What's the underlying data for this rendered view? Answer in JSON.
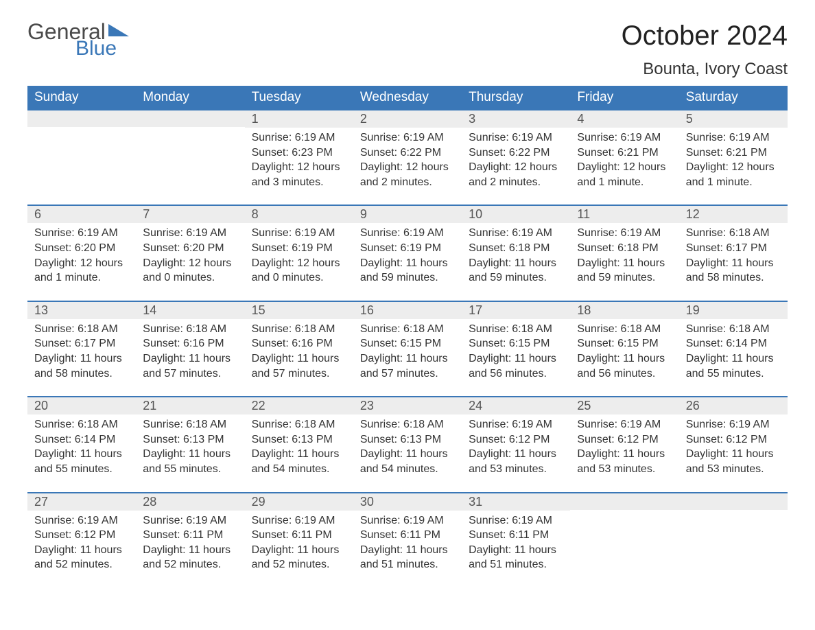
{
  "brand": {
    "part1": "General",
    "part2": "Blue",
    "brand_color": "#3a77b7",
    "text_color": "#4a4a4a"
  },
  "title": "October 2024",
  "location": "Bounta, Ivory Coast",
  "colors": {
    "header_bg": "#3a77b7",
    "header_text": "#ffffff",
    "daynum_bg": "#ededed",
    "body_text": "#333333",
    "row_border": "#3a77b7",
    "page_bg": "#ffffff"
  },
  "fonts": {
    "title_size_pt": 30,
    "header_size_pt": 14,
    "body_size_pt": 12
  },
  "weekdays": [
    "Sunday",
    "Monday",
    "Tuesday",
    "Wednesday",
    "Thursday",
    "Friday",
    "Saturday"
  ],
  "weeks": [
    [
      {
        "day": "",
        "sunrise": "",
        "sunset": "",
        "daylight": ""
      },
      {
        "day": "",
        "sunrise": "",
        "sunset": "",
        "daylight": ""
      },
      {
        "day": "1",
        "sunrise": "Sunrise: 6:19 AM",
        "sunset": "Sunset: 6:23 PM",
        "daylight": "Daylight: 12 hours and 3 minutes."
      },
      {
        "day": "2",
        "sunrise": "Sunrise: 6:19 AM",
        "sunset": "Sunset: 6:22 PM",
        "daylight": "Daylight: 12 hours and 2 minutes."
      },
      {
        "day": "3",
        "sunrise": "Sunrise: 6:19 AM",
        "sunset": "Sunset: 6:22 PM",
        "daylight": "Daylight: 12 hours and 2 minutes."
      },
      {
        "day": "4",
        "sunrise": "Sunrise: 6:19 AM",
        "sunset": "Sunset: 6:21 PM",
        "daylight": "Daylight: 12 hours and 1 minute."
      },
      {
        "day": "5",
        "sunrise": "Sunrise: 6:19 AM",
        "sunset": "Sunset: 6:21 PM",
        "daylight": "Daylight: 12 hours and 1 minute."
      }
    ],
    [
      {
        "day": "6",
        "sunrise": "Sunrise: 6:19 AM",
        "sunset": "Sunset: 6:20 PM",
        "daylight": "Daylight: 12 hours and 1 minute."
      },
      {
        "day": "7",
        "sunrise": "Sunrise: 6:19 AM",
        "sunset": "Sunset: 6:20 PM",
        "daylight": "Daylight: 12 hours and 0 minutes."
      },
      {
        "day": "8",
        "sunrise": "Sunrise: 6:19 AM",
        "sunset": "Sunset: 6:19 PM",
        "daylight": "Daylight: 12 hours and 0 minutes."
      },
      {
        "day": "9",
        "sunrise": "Sunrise: 6:19 AM",
        "sunset": "Sunset: 6:19 PM",
        "daylight": "Daylight: 11 hours and 59 minutes."
      },
      {
        "day": "10",
        "sunrise": "Sunrise: 6:19 AM",
        "sunset": "Sunset: 6:18 PM",
        "daylight": "Daylight: 11 hours and 59 minutes."
      },
      {
        "day": "11",
        "sunrise": "Sunrise: 6:19 AM",
        "sunset": "Sunset: 6:18 PM",
        "daylight": "Daylight: 11 hours and 59 minutes."
      },
      {
        "day": "12",
        "sunrise": "Sunrise: 6:18 AM",
        "sunset": "Sunset: 6:17 PM",
        "daylight": "Daylight: 11 hours and 58 minutes."
      }
    ],
    [
      {
        "day": "13",
        "sunrise": "Sunrise: 6:18 AM",
        "sunset": "Sunset: 6:17 PM",
        "daylight": "Daylight: 11 hours and 58 minutes."
      },
      {
        "day": "14",
        "sunrise": "Sunrise: 6:18 AM",
        "sunset": "Sunset: 6:16 PM",
        "daylight": "Daylight: 11 hours and 57 minutes."
      },
      {
        "day": "15",
        "sunrise": "Sunrise: 6:18 AM",
        "sunset": "Sunset: 6:16 PM",
        "daylight": "Daylight: 11 hours and 57 minutes."
      },
      {
        "day": "16",
        "sunrise": "Sunrise: 6:18 AM",
        "sunset": "Sunset: 6:15 PM",
        "daylight": "Daylight: 11 hours and 57 minutes."
      },
      {
        "day": "17",
        "sunrise": "Sunrise: 6:18 AM",
        "sunset": "Sunset: 6:15 PM",
        "daylight": "Daylight: 11 hours and 56 minutes."
      },
      {
        "day": "18",
        "sunrise": "Sunrise: 6:18 AM",
        "sunset": "Sunset: 6:15 PM",
        "daylight": "Daylight: 11 hours and 56 minutes."
      },
      {
        "day": "19",
        "sunrise": "Sunrise: 6:18 AM",
        "sunset": "Sunset: 6:14 PM",
        "daylight": "Daylight: 11 hours and 55 minutes."
      }
    ],
    [
      {
        "day": "20",
        "sunrise": "Sunrise: 6:18 AM",
        "sunset": "Sunset: 6:14 PM",
        "daylight": "Daylight: 11 hours and 55 minutes."
      },
      {
        "day": "21",
        "sunrise": "Sunrise: 6:18 AM",
        "sunset": "Sunset: 6:13 PM",
        "daylight": "Daylight: 11 hours and 55 minutes."
      },
      {
        "day": "22",
        "sunrise": "Sunrise: 6:18 AM",
        "sunset": "Sunset: 6:13 PM",
        "daylight": "Daylight: 11 hours and 54 minutes."
      },
      {
        "day": "23",
        "sunrise": "Sunrise: 6:18 AM",
        "sunset": "Sunset: 6:13 PM",
        "daylight": "Daylight: 11 hours and 54 minutes."
      },
      {
        "day": "24",
        "sunrise": "Sunrise: 6:19 AM",
        "sunset": "Sunset: 6:12 PM",
        "daylight": "Daylight: 11 hours and 53 minutes."
      },
      {
        "day": "25",
        "sunrise": "Sunrise: 6:19 AM",
        "sunset": "Sunset: 6:12 PM",
        "daylight": "Daylight: 11 hours and 53 minutes."
      },
      {
        "day": "26",
        "sunrise": "Sunrise: 6:19 AM",
        "sunset": "Sunset: 6:12 PM",
        "daylight": "Daylight: 11 hours and 53 minutes."
      }
    ],
    [
      {
        "day": "27",
        "sunrise": "Sunrise: 6:19 AM",
        "sunset": "Sunset: 6:12 PM",
        "daylight": "Daylight: 11 hours and 52 minutes."
      },
      {
        "day": "28",
        "sunrise": "Sunrise: 6:19 AM",
        "sunset": "Sunset: 6:11 PM",
        "daylight": "Daylight: 11 hours and 52 minutes."
      },
      {
        "day": "29",
        "sunrise": "Sunrise: 6:19 AM",
        "sunset": "Sunset: 6:11 PM",
        "daylight": "Daylight: 11 hours and 52 minutes."
      },
      {
        "day": "30",
        "sunrise": "Sunrise: 6:19 AM",
        "sunset": "Sunset: 6:11 PM",
        "daylight": "Daylight: 11 hours and 51 minutes."
      },
      {
        "day": "31",
        "sunrise": "Sunrise: 6:19 AM",
        "sunset": "Sunset: 6:11 PM",
        "daylight": "Daylight: 11 hours and 51 minutes."
      },
      {
        "day": "",
        "sunrise": "",
        "sunset": "",
        "daylight": ""
      },
      {
        "day": "",
        "sunrise": "",
        "sunset": "",
        "daylight": ""
      }
    ]
  ]
}
